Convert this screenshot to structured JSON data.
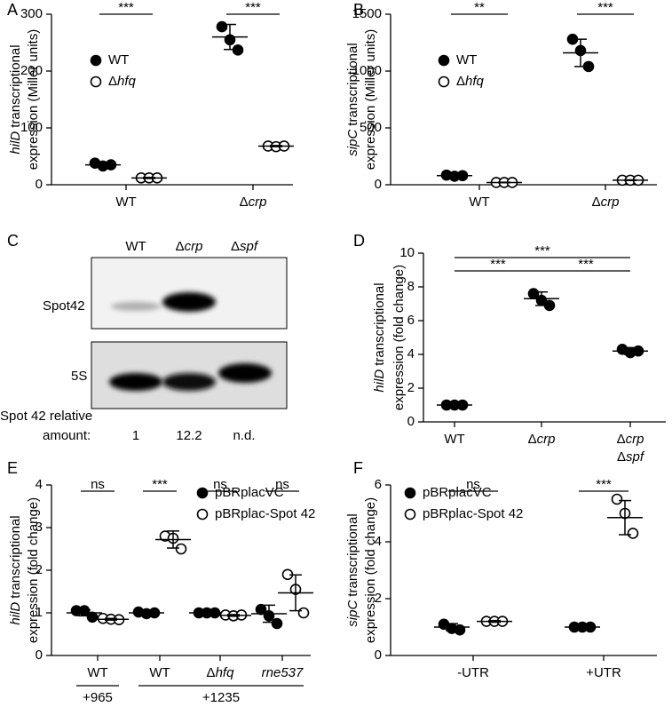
{
  "chart_data": [
    {
      "type": "scatter",
      "panel": "A",
      "ylabel": {
        "gene": "hilD",
        "text": "transcriptional",
        "line2": "expression (Miller units)"
      },
      "categories": [
        "WT",
        "Δcrp"
      ],
      "ylim": [
        0,
        300
      ],
      "yticks": [
        0,
        100,
        200,
        300
      ],
      "significance": [
        "***",
        "***"
      ],
      "series": [
        {
          "name": "WT",
          "marker": "filled",
          "color": "#000000",
          "values": [
            [
              38,
              33,
              35
            ],
            [
              278,
              255,
              237
            ]
          ],
          "mean": [
            35,
            260
          ],
          "sd": [
            3,
            22
          ]
        },
        {
          "name": "Δhfq",
          "marker": "open",
          "color": "#000000",
          "values": [
            [
              12,
              12,
              12
            ],
            [
              68,
              67,
              68
            ]
          ],
          "mean": [
            12,
            68
          ],
          "sd": [
            1,
            1
          ]
        }
      ]
    },
    {
      "type": "scatter",
      "panel": "B",
      "ylabel": {
        "gene": "sipC",
        "text": "transcriptional",
        "line2": "expression (Miller units)"
      },
      "categories": [
        "WT",
        "Δcrp"
      ],
      "ylim": [
        0,
        1500
      ],
      "yticks": [
        0,
        500,
        1000,
        1500
      ],
      "significance": [
        "**",
        "***"
      ],
      "series": [
        {
          "name": "WT",
          "marker": "filled",
          "color": "#000000",
          "values": [
            [
              85,
              75,
              80
            ],
            [
              1280,
              1180,
              1040
            ]
          ],
          "mean": [
            80,
            1160
          ],
          "sd": [
            6,
            120
          ]
        },
        {
          "name": "Δhfq",
          "marker": "open",
          "color": "#000000",
          "values": [
            [
              20,
              20,
              20
            ],
            [
              40,
              40,
              40
            ]
          ],
          "mean": [
            20,
            40
          ],
          "sd": [
            2,
            3
          ]
        }
      ]
    },
    {
      "type": "scatter",
      "panel": "D",
      "ylabel": {
        "gene": "hilD",
        "text": "transcriptional",
        "line2": "expression (fold change)"
      },
      "categories": [
        "WT",
        "Δcrp",
        [
          "Δcrp",
          "Δspf"
        ]
      ],
      "ylim": [
        0,
        10
      ],
      "yticks": [
        0,
        2,
        4,
        6,
        8,
        10
      ],
      "comparisons": [
        {
          "from": "WT",
          "to": "Δcrp",
          "label": "***"
        },
        {
          "from": "Δcrp",
          "to": "ΔcrpΔspf",
          "label": "***"
        },
        {
          "from": "WT",
          "to": "ΔcrpΔspf",
          "label": "***"
        }
      ],
      "series": [
        {
          "name": null,
          "marker": "filled",
          "color": "#000000",
          "values": [
            [
              1,
              1,
              1
            ],
            [
              7.6,
              7.2,
              6.9
            ],
            [
              4.3,
              4.1,
              4.2
            ]
          ],
          "mean": [
            1,
            7.3,
            4.2
          ],
          "sd": [
            0.05,
            0.4,
            0.2
          ]
        }
      ]
    },
    {
      "type": "scatter",
      "panel": "E",
      "ylabel": {
        "gene": "hilD",
        "text": "transcriptional",
        "line2": "expression (fold change)"
      },
      "groups": [
        {
          "label": "+965",
          "categories": [
            "WT"
          ]
        },
        {
          "label": "+1235",
          "categories": [
            "WT",
            "Δhfq",
            "rne537"
          ]
        }
      ],
      "ylim": [
        0,
        4
      ],
      "yticks": [
        0,
        1,
        2,
        3,
        4
      ],
      "significance": [
        "ns",
        "***",
        "ns",
        "ns"
      ],
      "series": [
        {
          "name": "pBRplacVC",
          "marker": "filled",
          "color": "#000000",
          "values": [
            [
              1.05,
              1.05,
              0.9
            ],
            [
              1.02,
              0.98,
              1.0
            ],
            [
              1.0,
              1.0,
              1.0
            ],
            [
              1.08,
              0.93,
              0.75
            ]
          ],
          "mean": [
            1.0,
            1.0,
            1.0,
            0.98
          ],
          "sd": [
            0.07,
            0.03,
            0.02,
            0.2
          ]
        },
        {
          "name": "pBRplac-Spot 42",
          "marker": "open",
          "color": "#000000",
          "values": [
            [
              0.87,
              0.85,
              0.84
            ],
            [
              2.8,
              2.75,
              2.5
            ],
            [
              0.95,
              0.93,
              0.95
            ],
            [
              1.9,
              1.55,
              1.0
            ]
          ],
          "mean": [
            0.85,
            2.72,
            0.94,
            1.47
          ],
          "sd": [
            0.02,
            0.2,
            0.02,
            0.42
          ]
        }
      ]
    },
    {
      "type": "scatter",
      "panel": "F",
      "ylabel": {
        "gene": "sipC",
        "text": "transcriptional",
        "line2": "expression (fold change)"
      },
      "categories": [
        "-UTR",
        "+UTR"
      ],
      "ylim": [
        0,
        6
      ],
      "yticks": [
        0,
        2,
        4,
        6
      ],
      "significance": [
        "ns",
        "***"
      ],
      "series": [
        {
          "name": "pBRplacVC",
          "marker": "filled",
          "color": "#000000",
          "values": [
            [
              1.1,
              0.95,
              0.9
            ],
            [
              1.0,
              1.0,
              1.0
            ]
          ],
          "mean": [
            1.0,
            1.0
          ],
          "sd": [
            0.12,
            0.03
          ]
        },
        {
          "name": "pBRplac-Spot 42",
          "marker": "open",
          "color": "#000000",
          "values": [
            [
              1.2,
              1.2,
              1.2
            ],
            [
              5.5,
              5.0,
              4.3
            ]
          ],
          "mean": [
            1.2,
            4.85
          ],
          "sd": [
            0.03,
            0.6
          ]
        }
      ]
    }
  ],
  "blot": {
    "panel": "C",
    "lanes": [
      "WT",
      "Δcrp",
      "Δspf"
    ],
    "rows": [
      "Spot42",
      "5S"
    ],
    "quant_label": [
      "Spot 42 relative",
      "amount:"
    ],
    "quant": [
      "1",
      "12.2",
      "n.d."
    ]
  }
}
